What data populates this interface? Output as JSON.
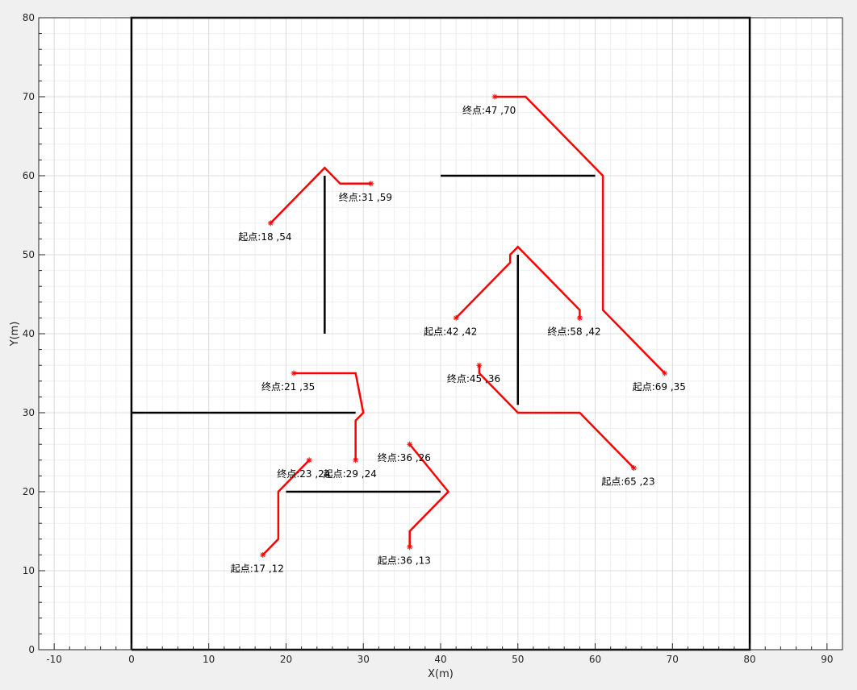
{
  "chart_data": {
    "type": "line",
    "xlabel": "X(m)",
    "ylabel": "Y(m)",
    "xlim": [
      -12,
      92
    ],
    "ylim": [
      0,
      80
    ],
    "xticks": [
      -10,
      0,
      10,
      20,
      30,
      40,
      50,
      60,
      70,
      80,
      90
    ],
    "yticks": [
      0,
      10,
      20,
      30,
      40,
      50,
      60,
      70,
      80
    ],
    "grid": true,
    "minor_grid": true,
    "colors": {
      "path": "#ff0000",
      "obstacle": "#000000",
      "grid": "#dcdcdc",
      "minor_grid": "#efefef",
      "background": "#ffffff",
      "figure": "#f0f0f0"
    },
    "boundary": {
      "x": [
        0,
        80,
        80,
        0,
        0
      ],
      "y": [
        0,
        0,
        80,
        80,
        0
      ]
    },
    "obstacles": [
      {
        "x": [
          25,
          25
        ],
        "y": [
          40,
          60
        ]
      },
      {
        "x": [
          40,
          60
        ],
        "y": [
          60,
          60
        ]
      },
      {
        "x": [
          50,
          50
        ],
        "y": [
          31,
          50
        ]
      },
      {
        "x": [
          0,
          29
        ],
        "y": [
          30,
          30
        ]
      },
      {
        "x": [
          20,
          40
        ],
        "y": [
          20,
          20
        ]
      }
    ],
    "paths": [
      {
        "x": [
          18,
          25,
          27,
          31
        ],
        "y": [
          54,
          61,
          59,
          59
        ]
      },
      {
        "x": [
          69,
          61,
          61,
          51,
          47
        ],
        "y": [
          35,
          43,
          60,
          70,
          70
        ]
      },
      {
        "x": [
          42,
          49,
          49,
          50,
          58,
          58
        ],
        "y": [
          42,
          49,
          50,
          51,
          43,
          42
        ]
      },
      {
        "x": [
          65,
          58,
          50,
          45,
          45
        ],
        "y": [
          23,
          30,
          30,
          35,
          36
        ]
      },
      {
        "x": [
          29,
          29,
          30,
          29,
          21
        ],
        "y": [
          24,
          29,
          30,
          35,
          35
        ]
      },
      {
        "x": [
          17,
          19,
          19,
          23
        ],
        "y": [
          12,
          14,
          20,
          24
        ]
      },
      {
        "x": [
          36,
          36,
          41,
          36
        ],
        "y": [
          13,
          15,
          20,
          26
        ]
      }
    ],
    "annotations": [
      {
        "text": "起点:18 ,54",
        "x": 18,
        "y": 54
      },
      {
        "text": "终点:31 ,59",
        "x": 31,
        "y": 59
      },
      {
        "text": "终点:47 ,70",
        "x": 47,
        "y": 70
      },
      {
        "text": "起点:69 ,35",
        "x": 69,
        "y": 35
      },
      {
        "text": "起点:42 ,42",
        "x": 42,
        "y": 42
      },
      {
        "text": "终点:58 ,42",
        "x": 58,
        "y": 42
      },
      {
        "text": "终点:45 ,36",
        "x": 45,
        "y": 36
      },
      {
        "text": "起点:65 ,23",
        "x": 65,
        "y": 23
      },
      {
        "text": "终点:21 ,35",
        "x": 21,
        "y": 35
      },
      {
        "text": "起点:29 ,24",
        "x": 29,
        "y": 24
      },
      {
        "text": "终点:23 ,24",
        "x": 23,
        "y": 24
      },
      {
        "text": "起点:17 ,12",
        "x": 17,
        "y": 12
      },
      {
        "text": "终点:36 ,26",
        "x": 36,
        "y": 26
      },
      {
        "text": "起点:36 ,13",
        "x": 36,
        "y": 13
      }
    ]
  }
}
